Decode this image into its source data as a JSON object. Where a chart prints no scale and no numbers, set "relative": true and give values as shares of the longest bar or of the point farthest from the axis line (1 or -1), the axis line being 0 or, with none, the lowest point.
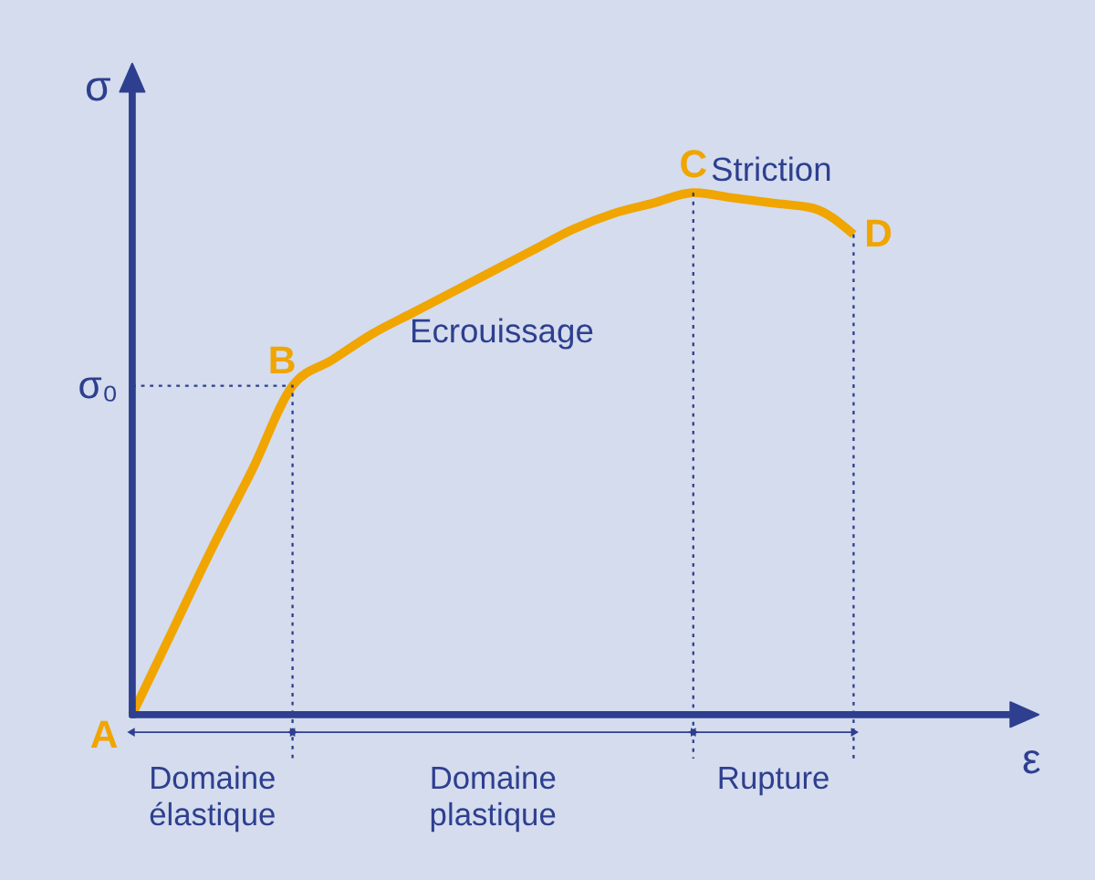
{
  "chart_data": {
    "type": "line",
    "relative": true,
    "xlabel": "ε",
    "ylabel": "σ",
    "color": "#f0a500",
    "categories": [
      null,
      null,
      null,
      null,
      null,
      null,
      null,
      null,
      null,
      null,
      null,
      null,
      null,
      null,
      null,
      null,
      null,
      null,
      null,
      null,
      null,
      null,
      null
    ],
    "values": [
      0,
      0.16,
      0.32,
      0.47,
      0.63,
      0.68,
      0.73,
      0.77,
      0.81,
      0.85,
      0.89,
      0.93,
      0.96,
      0.98,
      1,
      0.99,
      0.98,
      0.97,
      0.92,
      null,
      null,
      null,
      null
    ],
    "annotations": [
      "A",
      "B",
      "C",
      "D",
      "Ecrouissage",
      "Striction",
      "σ₀",
      "Domaine\nélastique",
      "Domaine\nplastique",
      "Rupture"
    ]
  }
}
